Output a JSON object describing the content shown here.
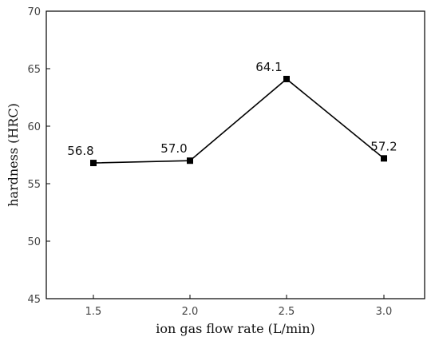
{
  "chart_data": {
    "type": "line",
    "title": "",
    "xlabel": "ion gas flow rate (L/min)",
    "ylabel": "hardness (HRC)",
    "x": [
      1.5,
      2.0,
      2.5,
      3.0
    ],
    "x_tick_labels": [
      "1.5",
      "2.0",
      "2.5",
      "3.0"
    ],
    "y_tick_labels": [
      "45",
      "50",
      "55",
      "60",
      "65",
      "70"
    ],
    "ylim": [
      45,
      70
    ],
    "grid": false,
    "series": [
      {
        "values": [
          56.8,
          57.0,
          64.1,
          57.2
        ],
        "labels": [
          "56.8",
          "57.0",
          "64.1",
          "57.2"
        ]
      }
    ]
  }
}
